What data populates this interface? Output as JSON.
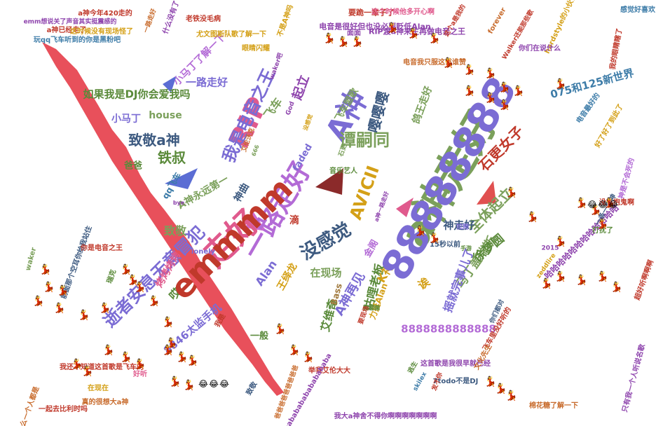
{
  "palette": [
    "#7ba05b",
    "#e05a8d",
    "#c0392b",
    "#7b6cd4",
    "#8e44ad",
    "#d4a017",
    "#3d7ca8",
    "#5a8a3a",
    "#b03a5b",
    "#c86b2c",
    "#4a7b8c",
    "#a0793d",
    "#6c8f2c",
    "#9b59b6",
    "#d35400",
    "#2e86ab"
  ],
  "words": [
    {
      "t": "a神走好",
      "c": "#7ba05b"
    },
    {
      "t": "走好",
      "c": "#e05a8d"
    },
    {
      "t": "A神",
      "c": "#7b6cd4"
    },
    {
      "t": "RIP",
      "c": "#e05a8d"
    },
    {
      "t": "一路走好",
      "c": "#b36bd6"
    },
    {
      "t": "我是电音之王",
      "c": "#7b6cd4"
    },
    {
      "t": "没感觉",
      "c": "#3d5a80"
    },
    {
      "t": "谭嗣同",
      "c": "#7ba05b"
    },
    {
      "t": "AVICII",
      "c": "#d4a017"
    },
    {
      "t": "逝者安息无意冒犯",
      "c": "#7b6cd4"
    },
    {
      "t": "全体起立",
      "c": "#7ba05b"
    },
    {
      "t": "致敬a神",
      "c": "#3d5a80"
    },
    {
      "t": "铁叔",
      "c": "#5a8a3a"
    },
    {
      "t": "嘤嘤嘤",
      "c": "#3d5a80"
    },
    {
      "t": "石更女子",
      "c": "#c0392b"
    },
    {
      "t": "A神再见",
      "c": "#7b6cd4"
    },
    {
      "t": "如果我是DJ你会爱我吗",
      "c": "#5a8a3a"
    },
    {
      "t": "075和125新世界",
      "c": "#3d7ca8"
    },
    {
      "t": "咕哩老板",
      "c": "#5a8a3a"
    },
    {
      "t": "马丁盖瑞斯",
      "c": "#7ba05b"
    },
    {
      "t": "8846太监手机",
      "c": "#7b6cd4"
    },
    {
      "t": "艾维奇",
      "c": "#5a8a3a"
    },
    {
      "t": "摇就完事儿了",
      "c": "#7b6cd4"
    },
    {
      "t": "徐梦圆",
      "c": "#5a8a3a"
    },
    {
      "t": "王绎龙",
      "c": "#d4a017"
    },
    {
      "t": "8888888888888",
      "c": "#b36bd6"
    },
    {
      "t": "在现场",
      "c": "#7ba05b"
    },
    {
      "t": "A神永远第一",
      "c": "#7ba05b"
    },
    {
      "t": "神走好",
      "c": "#3d5a80"
    },
    {
      "t": "起立",
      "c": "#8e44ad"
    },
    {
      "t": "飞车",
      "c": "#7ba05b"
    },
    {
      "t": "小马丁了解一下",
      "c": "#b36bd6"
    },
    {
      "t": "一路走好",
      "c": "#7b6cd4"
    },
    {
      "t": "致敬",
      "c": "#7ba05b"
    },
    {
      "t": "烤烤烤烤",
      "c": "#e05a8d"
    },
    {
      "t": "哎",
      "c": "#5a8a3a"
    },
    {
      "t": "Alan",
      "c": "#7b6cd4"
    },
    {
      "t": "K神",
      "c": "#d4a017"
    },
    {
      "t": "滴",
      "c": "#c0392b"
    },
    {
      "t": "神曲",
      "c": "#3d5a80"
    },
    {
      "t": "house",
      "c": "#7ba05b"
    },
    {
      "t": "小马丁",
      "c": "#7b6cd4"
    },
    {
      "t": "爸爸",
      "c": "#5a8a3a"
    },
    {
      "t": "faded",
      "c": "#7b6cd4"
    },
    {
      "t": "诶",
      "c": "#d4a017"
    },
    {
      "t": "鸽王走好",
      "c": "#7ba05b"
    },
    {
      "t": "飞车盟歌",
      "c": "#7ba05b"
    },
    {
      "t": "一般",
      "c": "#5a8a3a"
    },
    {
      "t": "金阁",
      "c": "#b36bd6"
    },
    {
      "t": "Bass",
      "c": "#a0793d"
    },
    {
      "t": "力挺Alan",
      "c": "#d4a017"
    },
    {
      "t": "qq飞车",
      "c": "#3d7ca8"
    },
    {
      "t": "电音是很好但也没必要贬低Alan",
      "c": "#8e44ad"
    },
    {
      "t": "RIP渡a神来生再做电音之王",
      "c": "#8e44ad"
    },
    {
      "t": "要跪一辈子了",
      "c": "#c0392b"
    },
    {
      "t": "这个时候他多开心啊",
      "c": "#e05a8d"
    },
    {
      "t": "a神今年420走的",
      "c": "#c0392b"
    },
    {
      "t": "emm想说关了声音其实挺震感的",
      "c": "#8e44ad"
    },
    {
      "t": "a神已经走了",
      "c": "#c0392b"
    },
    {
      "t": "这时候没有现场怪了",
      "c": "#d4a017"
    },
    {
      "t": "玩qq飞车听到的你是黑粉吧",
      "c": "#3d7ca8"
    },
    {
      "t": "尤文图斯队歌了解一下",
      "c": "#d4a017"
    },
    {
      "t": "老铁没毛病",
      "c": "#c0392b"
    },
    {
      "t": "什么没有了",
      "c": "#8e44ad"
    },
    {
      "t": "一路走好",
      "c": "#c86b2c"
    },
    {
      "t": "哈哈哈哈哈哈哈哈哈哈哈哈",
      "c": "#8e44ad"
    },
    {
      "t": "我大a神舍不得你啊啊啊啊啊啊啊",
      "c": "#8e44ad"
    },
    {
      "t": "举我艾伦大大",
      "c": "#c0392b"
    },
    {
      "t": "音乐艺人",
      "c": "#5a8a3a"
    },
    {
      "t": "眼睛闪耀",
      "c": "#d4a017"
    },
    {
      "t": "电音我只服这首谁赞",
      "c": "#c86b2c"
    },
    {
      "t": "感觉好喜欢",
      "c": "#3d7ca8"
    },
    {
      "t": "我的眼睛瞎了",
      "c": "#c0392b"
    },
    {
      "t": "好了好了到此了",
      "c": "#d4a017"
    },
    {
      "t": "棉花糖了解一下",
      "c": "#c86b2c"
    },
    {
      "t": "一起去比利时吗",
      "c": "#c0392b"
    },
    {
      "t": "真的很想大a神",
      "c": "#c86b2c"
    },
    {
      "t": "为什么一个人都是",
      "c": "#c86b2c"
    },
    {
      "t": "在现在",
      "c": "#d4a017"
    },
    {
      "t": "我还不知道这首歌是飞车的",
      "c": "#c0392b"
    },
    {
      "t": "前面那个空耳你给我站住",
      "c": "#3d5a80"
    },
    {
      "t": "艾伦沃克",
      "c": "#c86b2c"
    },
    {
      "t": "没感觉",
      "c": "#d4a017"
    },
    {
      "t": "bye",
      "c": "#8e44ad"
    },
    {
      "t": "God",
      "c": "#8e44ad"
    },
    {
      "t": "666",
      "c": "#7ba05b"
    },
    {
      "t": "15秒以前",
      "c": "#3d5a80"
    },
    {
      "t": "拉胯",
      "c": "#7b6cd4"
    },
    {
      "t": "石更",
      "c": "#7ba05b"
    },
    {
      "t": "手游",
      "c": "#5a8a3a"
    },
    {
      "t": "2015",
      "c": "#8e44ad"
    },
    {
      "t": "7todo不是DJ",
      "c": "#3d5a80"
    },
    {
      "t": "zeddlire",
      "c": "#d4a017"
    },
    {
      "t": "skilex",
      "c": "#3d7ca8"
    },
    {
      "t": "lonely",
      "c": "#7b6cd4"
    },
    {
      "t": "waker吧",
      "c": "#8e44ad"
    },
    {
      "t": "forever",
      "c": "#c86b2c"
    },
    {
      "t": "hardstyle的小伙伴在哪",
      "c": "#d4a017"
    },
    {
      "t": "Walker还能那些歌",
      "c": "#c0392b"
    },
    {
      "t": "这个a是我的",
      "c": "#c0392b"
    },
    {
      "t": "你们在说什么",
      "c": "#8e44ad"
    },
    {
      "t": "没有抱鬼啊",
      "c": "#c0392b"
    },
    {
      "t": "电音最好的",
      "c": "#3d7ca8"
    },
    {
      "t": "打扰了",
      "c": "#5a8a3a"
    },
    {
      "t": "神是不会死的",
      "c": "#b36bd6"
    },
    {
      "t": "一条一个神",
      "c": "#3d5a80"
    },
    {
      "t": "超好听啊啊啊",
      "c": "#c0392b"
    },
    {
      "t": "只有我一个人听说名歌",
      "c": "#8e44ad"
    },
    {
      "t": "飞车里没好听的",
      "c": "#c0392b"
    },
    {
      "t": "这首歌是我很早就已经",
      "c": "#8e44ad"
    },
    {
      "t": "bababababababababa",
      "c": "#8e44ad"
    },
    {
      "t": "爸爸爸爸爸爸爸爸爸",
      "c": "#c86b2c"
    },
    {
      "t": "逃生",
      "c": "#5a8a3a"
    },
    {
      "t": "不是A神吗",
      "c": "#d4a017"
    },
    {
      "t": "面面",
      "c": "#8e44ad"
    },
    {
      "t": "发不你",
      "c": "#c0392b"
    },
    {
      "t": "蹦蹦蹦",
      "c": "#5a8a3a"
    },
    {
      "t": "好听",
      "c": "#e05a8d"
    },
    {
      "t": "瑞克",
      "c": "#5a8a3a"
    },
    {
      "t": "你是电音之王",
      "c": "#c0392b"
    },
    {
      "t": "要现场",
      "c": "#c0392b"
    },
    {
      "t": "文化先生",
      "c": "#c86b2c"
    },
    {
      "t": "你们都对",
      "c": "#3d5a80"
    },
    {
      "t": "我是",
      "c": "#c0392b"
    },
    {
      "t": "a神一路走好",
      "c": "#8e44ad"
    },
    {
      "t": "致敬",
      "c": "#3d5a80"
    },
    {
      "t": "waker",
      "c": "#7ba05b"
    },
    {
      "t": "88888888",
      "c": "#7b6cd4"
    },
    {
      "t": "emmmm",
      "c": "#c0392b"
    }
  ],
  "emoji": {
    "figure": "💃",
    "laugh": "😂"
  },
  "lightning_color": "#e8505b"
}
